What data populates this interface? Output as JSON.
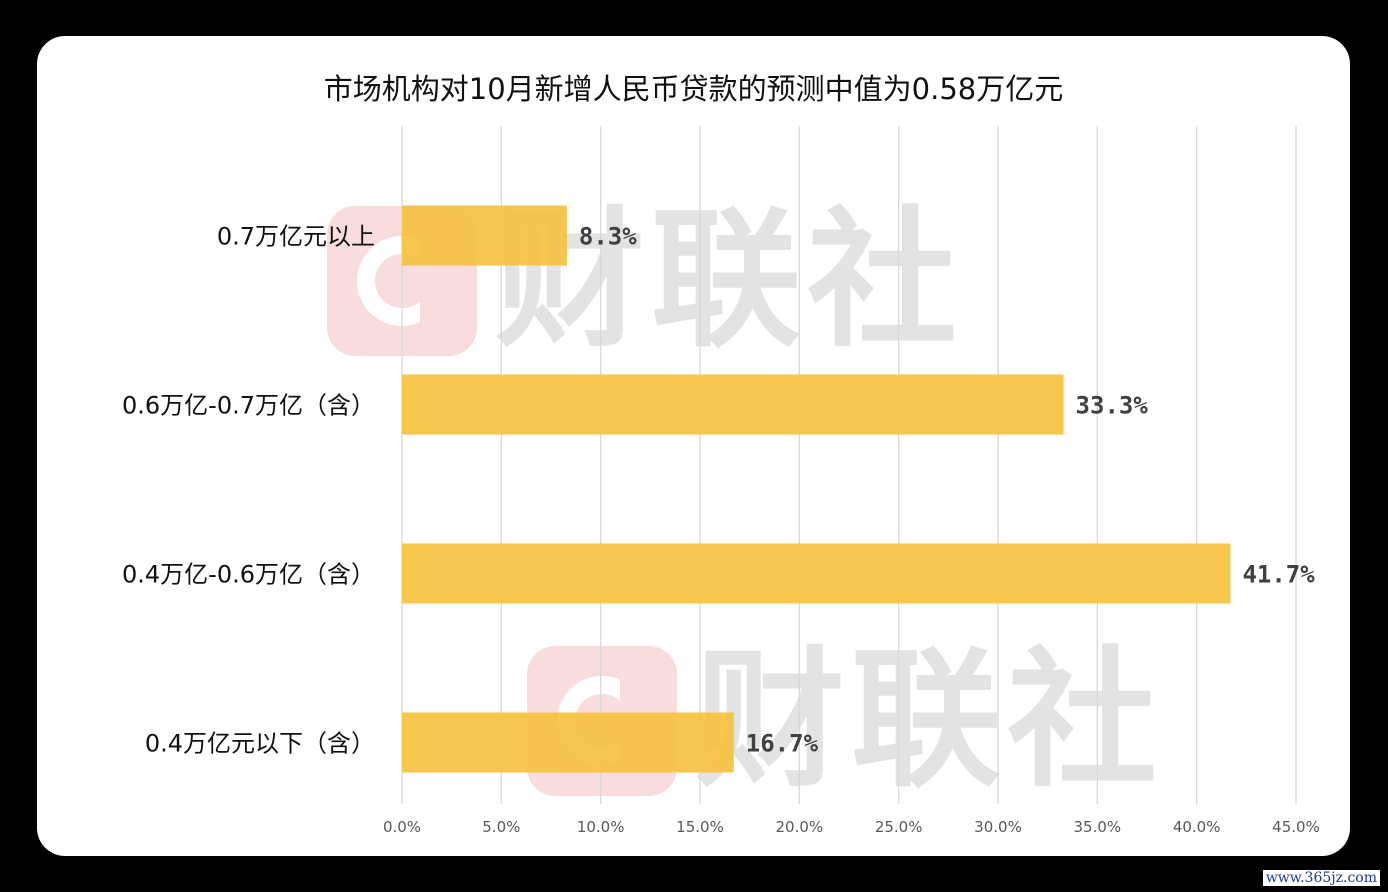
{
  "chart_data": {
    "type": "bar",
    "orientation": "horizontal",
    "title": "市场机构对10月新增人民币贷款的预测中值为0.58万亿元",
    "categories": [
      "0.7万亿元以上",
      "0.6万亿-0.7万亿（含）",
      "0.4万亿-0.6万亿（含）",
      "0.4万亿元以下（含）"
    ],
    "values": [
      8.3,
      33.3,
      41.7,
      16.7
    ],
    "data_labels": [
      "8.3%",
      "33.3%",
      "41.7%",
      "16.7%"
    ],
    "xlim": [
      0,
      45
    ],
    "xticks": [
      0,
      5,
      10,
      15,
      20,
      25,
      30,
      35,
      40,
      45
    ],
    "xtick_labels": [
      "0.0%",
      "5.0%",
      "10.0%",
      "15.0%",
      "20.0%",
      "25.0%",
      "30.0%",
      "35.0%",
      "40.0%",
      "45.0%"
    ],
    "grid": "vertical",
    "legend": "none",
    "bar_color": "#F5C242"
  },
  "watermark": {
    "text": "财联社"
  },
  "credit": "www.365jz.com"
}
